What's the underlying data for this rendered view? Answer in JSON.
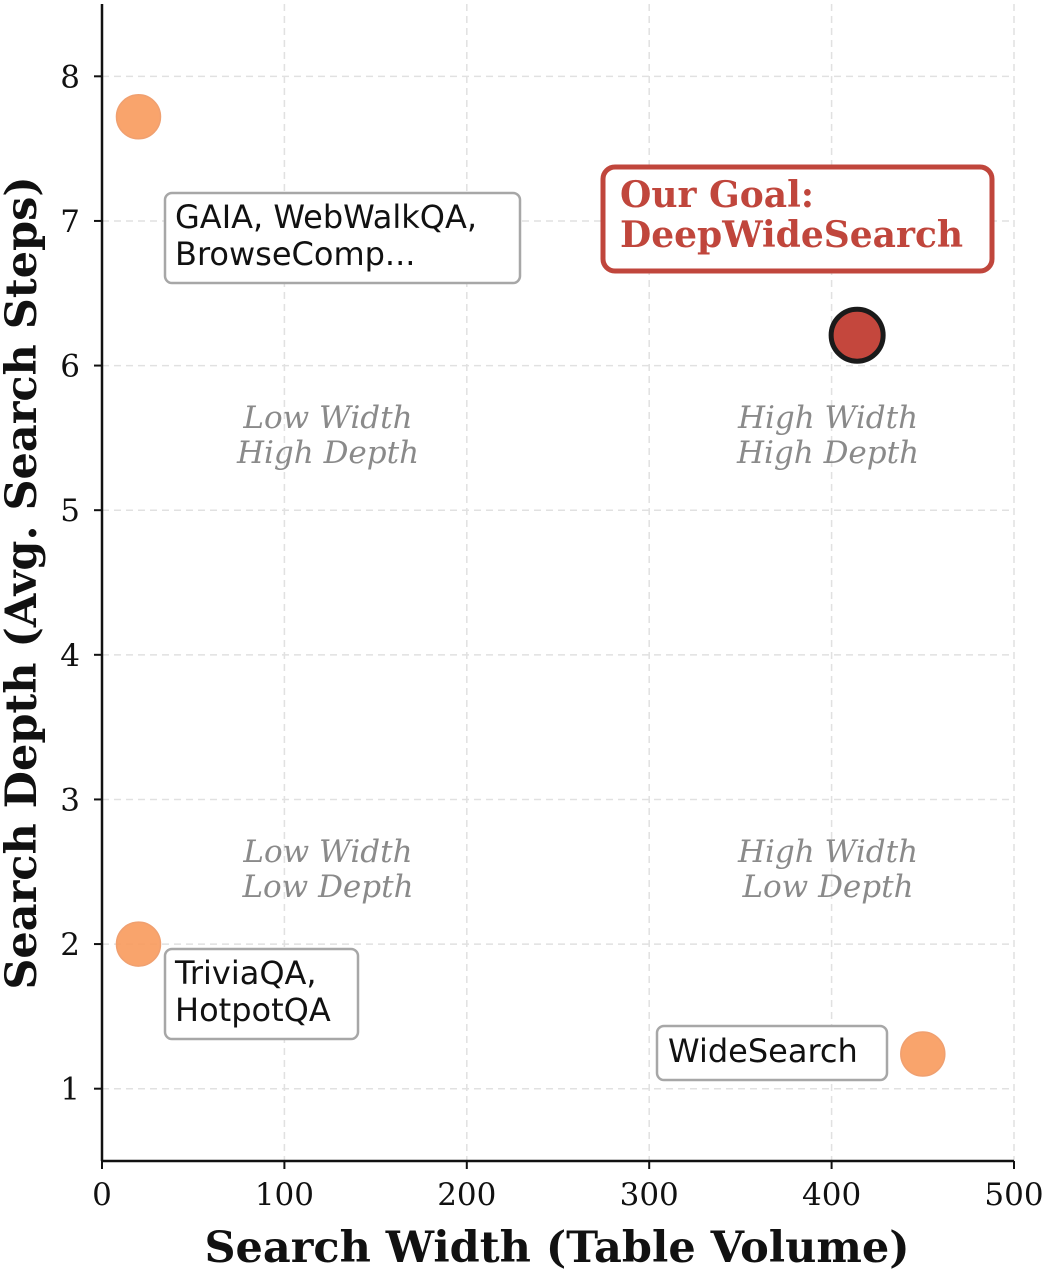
{
  "chart_data": {
    "type": "scatter",
    "xlabel": "Search Width (Table Volume)",
    "ylabel": "Search Depth (Avg. Search Steps)",
    "xlim": [
      0,
      500
    ],
    "ylim": [
      0.5,
      8.5
    ],
    "xticks": [
      0,
      100,
      200,
      300,
      400,
      500
    ],
    "yticks": [
      1,
      2,
      3,
      4,
      5,
      6,
      7,
      8
    ],
    "grid": true,
    "points": [
      {
        "x": 20,
        "y": 7.72,
        "color": "#f89a5c",
        "highlight": false
      },
      {
        "x": 20,
        "y": 2.0,
        "color": "#f89a5c",
        "highlight": false
      },
      {
        "x": 450,
        "y": 1.24,
        "color": "#f89a5c",
        "highlight": false
      },
      {
        "x": 414,
        "y": 6.21,
        "color": "#c4473d",
        "highlight": true
      }
    ],
    "point_labels": [
      {
        "lines": [
          "GAIA, WebWalkQA,",
          "BrowseComp..."
        ]
      },
      {
        "lines": [
          "TriviaQA,",
          "HotpotQA"
        ]
      },
      {
        "lines": [
          "WideSearch"
        ]
      },
      {
        "lines": [
          "Our Goal:",
          "DeepWideSearch"
        ],
        "color": "#c0463c"
      }
    ],
    "quadrant_labels": [
      {
        "lines": [
          "Low Width",
          "High Depth"
        ]
      },
      {
        "lines": [
          "High Width",
          "High Depth"
        ]
      },
      {
        "lines": [
          "Low Width",
          "Low Depth"
        ]
      },
      {
        "lines": [
          "High Width",
          "Low Depth"
        ]
      }
    ]
  }
}
